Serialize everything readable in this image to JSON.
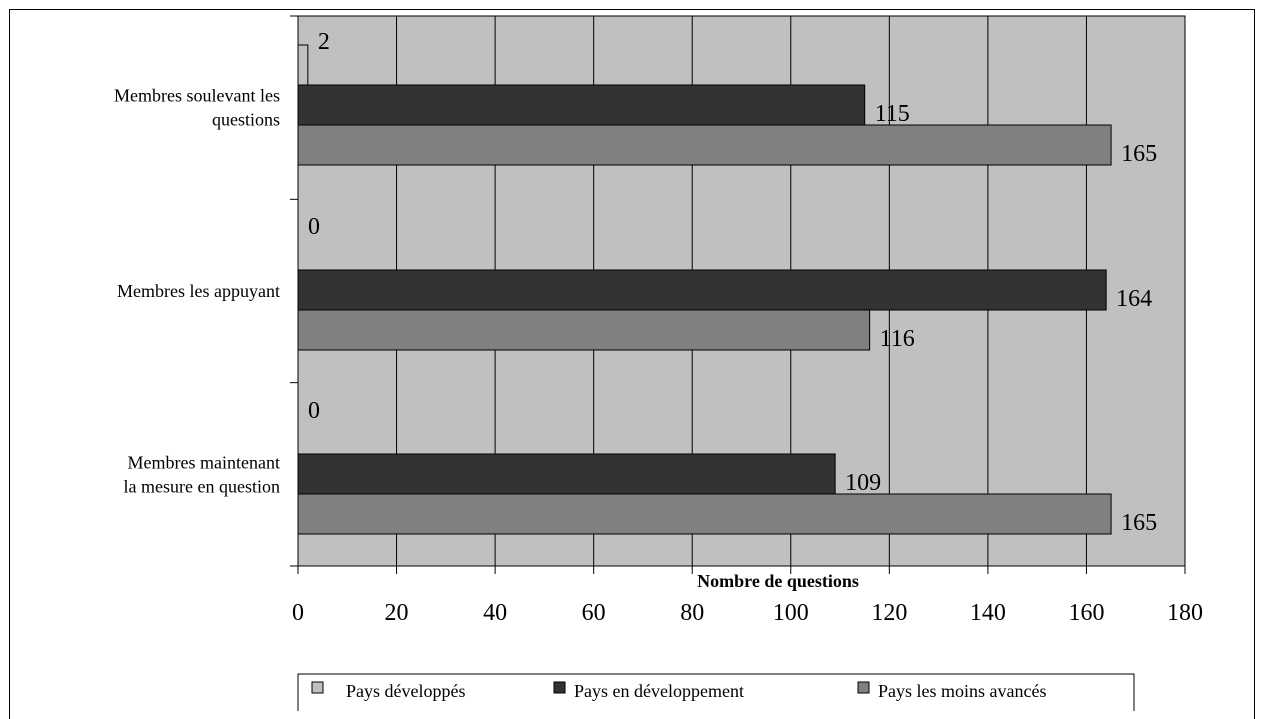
{
  "chart_data": {
    "type": "bar",
    "orientation": "horizontal",
    "categories": [
      [
        "Membres soulevant les",
        "questions"
      ],
      [
        "Membres les appuyant"
      ],
      [
        "Membres maintenant",
        "la mesure en question"
      ]
    ],
    "series": [
      {
        "name": "Pays développés",
        "values": [
          2,
          0,
          0
        ],
        "color": "#c0c0c0"
      },
      {
        "name": "Pays en développement",
        "values": [
          115,
          164,
          109
        ],
        "color": "#333333"
      },
      {
        "name": "Pays les moins avancés",
        "values": [
          165,
          116,
          165
        ],
        "color": "#808080"
      }
    ],
    "xlabel": "Nombre de questions",
    "xlim": [
      0,
      180
    ],
    "xticks": [
      0,
      20,
      40,
      60,
      80,
      100,
      120,
      140,
      160,
      180
    ],
    "grid": true,
    "plot_background": "#c0c0c0",
    "legend_position": "bottom"
  }
}
